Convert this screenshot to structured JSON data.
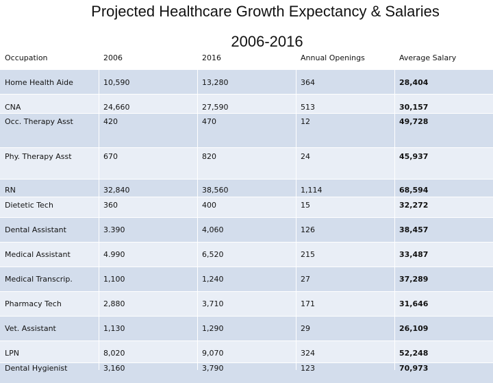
{
  "header": {
    "title": "Projected Healthcare Growth Expectancy & Salaries",
    "subtitle": "2006-2016"
  },
  "table": {
    "columns": [
      "Occupation",
      "2006",
      "2016",
      "Annual Openings",
      "Average Salary"
    ],
    "rows": [
      [
        "Home Health Aide",
        "10,590",
        "13,280",
        "364",
        "28,404"
      ],
      [
        "CNA",
        "24,660",
        "27,590",
        "513",
        "30,157"
      ],
      [
        "Occ. Therapy Asst",
        "420",
        "470",
        "12",
        "49,728"
      ],
      [
        "Phy. Therapy Asst",
        "670",
        "820",
        "24",
        "45,937"
      ],
      [
        "RN",
        "32,840",
        "38,560",
        "1,114",
        "68,594"
      ],
      [
        "Dietetic Tech",
        "360",
        "400",
        "15",
        "32,272"
      ],
      [
        "Dental Assistant",
        "3.390",
        "4,060",
        "126",
        "38,457"
      ],
      [
        "Medical Assistant",
        "4.990",
        "6,520",
        "215",
        "33,487"
      ],
      [
        "Medical Transcrip.",
        "1,100",
        "1,240",
        "27",
        "37,289"
      ],
      [
        "Pharmacy Tech",
        "2,880",
        "3,710",
        "171",
        "31,646"
      ],
      [
        "Vet. Assistant",
        "1,130",
        "1,290",
        "29",
        "26,109"
      ],
      [
        "LPN",
        "8,020",
        "9,070",
        "324",
        "52,248"
      ],
      [
        "Dental Hygienist",
        "3,160",
        "3,790",
        "123",
        "70,973"
      ]
    ]
  }
}
